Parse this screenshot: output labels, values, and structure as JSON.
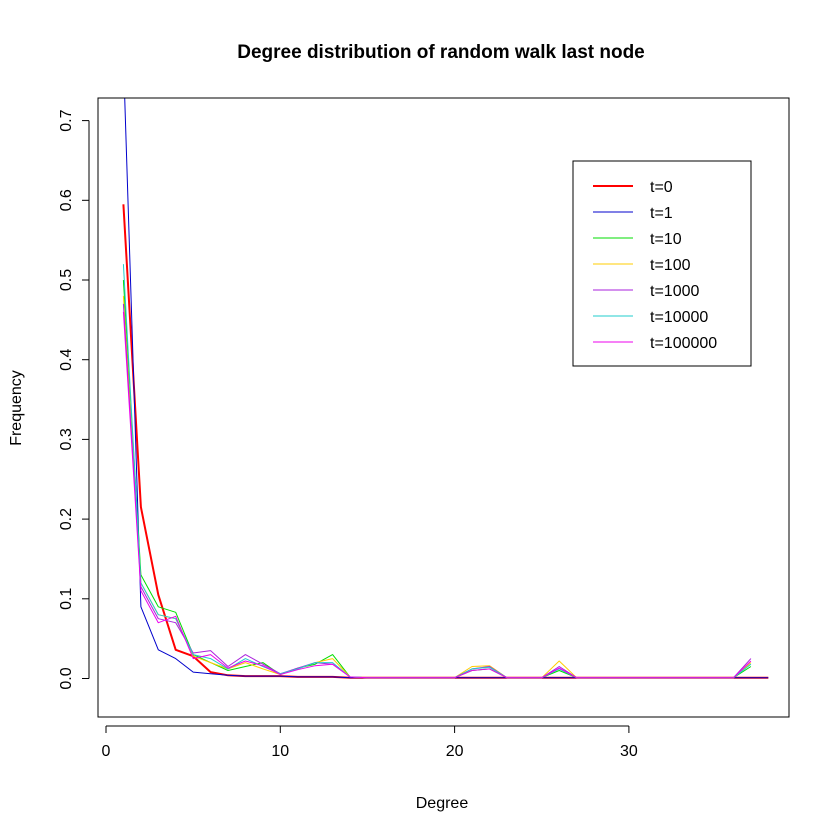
{
  "chart_data": {
    "type": "line",
    "title": "Degree distribution of random walk last node",
    "xlabel": "Degree",
    "ylabel": "Frequency",
    "xlim": [
      0,
      39
    ],
    "ylim": [
      -0.05,
      0.72
    ],
    "x_ticks": [
      0,
      10,
      20,
      30
    ],
    "y_ticks": [
      0.0,
      0.1,
      0.2,
      0.3,
      0.4,
      0.5,
      0.6,
      0.7
    ],
    "x_tick_labels": [
      "0",
      "10",
      "20",
      "30"
    ],
    "y_tick_labels": [
      "0.0",
      "0.1",
      "0.2",
      "0.3",
      "0.4",
      "0.5",
      "0.6",
      "0.7"
    ],
    "legend_position": "top-right",
    "series": [
      {
        "name": "t=0",
        "color": "#ff0000",
        "width": 2,
        "points": [
          [
            1,
            0.595
          ],
          [
            2,
            0.215
          ],
          [
            3,
            0.105
          ],
          [
            4,
            0.036
          ],
          [
            5,
            0.028
          ],
          [
            6,
            0.008
          ],
          [
            7,
            0.004
          ],
          [
            8,
            0.003
          ],
          [
            9,
            0.003
          ],
          [
            10,
            0.003
          ],
          [
            11,
            0.002
          ],
          [
            12,
            0.002
          ],
          [
            13,
            0.002
          ],
          [
            14,
            0.001
          ],
          [
            15,
            0.001
          ],
          [
            20,
            0.001
          ],
          [
            30,
            0.001
          ],
          [
            38,
            0.001
          ]
        ]
      },
      {
        "name": "t=1",
        "color": "#0000cc",
        "width": 1,
        "points": [
          [
            1,
            0.78
          ],
          [
            2,
            0.09
          ],
          [
            3,
            0.036
          ],
          [
            4,
            0.025
          ],
          [
            5,
            0.008
          ],
          [
            6,
            0.006
          ],
          [
            7,
            0.004
          ],
          [
            8,
            0.003
          ],
          [
            9,
            0.003
          ],
          [
            10,
            0.003
          ],
          [
            11,
            0.002
          ],
          [
            12,
            0.002
          ],
          [
            13,
            0.002
          ],
          [
            14,
            0.001
          ],
          [
            15,
            0.001
          ],
          [
            20,
            0.001
          ],
          [
            30,
            0.001
          ],
          [
            38,
            0.001
          ]
        ]
      },
      {
        "name": "t=10",
        "color": "#00dd00",
        "width": 1,
        "points": [
          [
            1,
            0.5
          ],
          [
            2,
            0.13
          ],
          [
            3,
            0.09
          ],
          [
            4,
            0.083
          ],
          [
            5,
            0.03
          ],
          [
            6,
            0.02
          ],
          [
            7,
            0.01
          ],
          [
            8,
            0.015
          ],
          [
            9,
            0.02
          ],
          [
            10,
            0.005
          ],
          [
            11,
            0.013
          ],
          [
            12,
            0.018
          ],
          [
            13,
            0.03
          ],
          [
            14,
            0.002
          ],
          [
            15,
            0.001
          ],
          [
            20,
            0.001
          ],
          [
            21,
            0.01
          ],
          [
            22,
            0.012
          ],
          [
            23,
            0.001
          ],
          [
            25,
            0.001
          ],
          [
            26,
            0.01
          ],
          [
            27,
            0.001
          ],
          [
            36,
            0.001
          ],
          [
            37,
            0.015
          ]
        ]
      },
      {
        "name": "t=100",
        "color": "#ffcc00",
        "width": 1,
        "points": [
          [
            1,
            0.48
          ],
          [
            2,
            0.12
          ],
          [
            3,
            0.08
          ],
          [
            4,
            0.075
          ],
          [
            5,
            0.028
          ],
          [
            6,
            0.02
          ],
          [
            7,
            0.012
          ],
          [
            8,
            0.02
          ],
          [
            9,
            0.012
          ],
          [
            10,
            0.005
          ],
          [
            11,
            0.012
          ],
          [
            12,
            0.02
          ],
          [
            13,
            0.025
          ],
          [
            14,
            0.002
          ],
          [
            15,
            0.001
          ],
          [
            20,
            0.001
          ],
          [
            21,
            0.015
          ],
          [
            22,
            0.016
          ],
          [
            23,
            0.001
          ],
          [
            25,
            0.001
          ],
          [
            26,
            0.022
          ],
          [
            27,
            0.001
          ],
          [
            36,
            0.001
          ],
          [
            37,
            0.02
          ]
        ]
      },
      {
        "name": "t=1000",
        "color": "#aa22dd",
        "width": 1,
        "points": [
          [
            1,
            0.47
          ],
          [
            2,
            0.115
          ],
          [
            3,
            0.075
          ],
          [
            4,
            0.07
          ],
          [
            5,
            0.032
          ],
          [
            6,
            0.035
          ],
          [
            7,
            0.015
          ],
          [
            8,
            0.03
          ],
          [
            9,
            0.018
          ],
          [
            10,
            0.006
          ],
          [
            11,
            0.013
          ],
          [
            12,
            0.02
          ],
          [
            13,
            0.018
          ],
          [
            14,
            0.002
          ],
          [
            15,
            0.001
          ],
          [
            20,
            0.001
          ],
          [
            21,
            0.012
          ],
          [
            22,
            0.015
          ],
          [
            23,
            0.001
          ],
          [
            25,
            0.001
          ],
          [
            26,
            0.015
          ],
          [
            27,
            0.001
          ],
          [
            36,
            0.001
          ],
          [
            37,
            0.025
          ]
        ]
      },
      {
        "name": "t=10000",
        "color": "#22cccc",
        "width": 1,
        "points": [
          [
            1,
            0.52
          ],
          [
            2,
            0.12
          ],
          [
            3,
            0.08
          ],
          [
            4,
            0.075
          ],
          [
            5,
            0.03
          ],
          [
            6,
            0.025
          ],
          [
            7,
            0.012
          ],
          [
            8,
            0.025
          ],
          [
            9,
            0.015
          ],
          [
            10,
            0.006
          ],
          [
            11,
            0.012
          ],
          [
            12,
            0.02
          ],
          [
            13,
            0.02
          ],
          [
            14,
            0.002
          ],
          [
            15,
            0.001
          ],
          [
            20,
            0.001
          ],
          [
            21,
            0.012
          ],
          [
            22,
            0.014
          ],
          [
            23,
            0.001
          ],
          [
            25,
            0.001
          ],
          [
            26,
            0.012
          ],
          [
            27,
            0.001
          ],
          [
            36,
            0.001
          ],
          [
            37,
            0.018
          ]
        ]
      },
      {
        "name": "t=100000",
        "color": "#ee00ee",
        "width": 1,
        "points": [
          [
            1,
            0.46
          ],
          [
            2,
            0.11
          ],
          [
            3,
            0.07
          ],
          [
            4,
            0.078
          ],
          [
            5,
            0.025
          ],
          [
            6,
            0.03
          ],
          [
            7,
            0.013
          ],
          [
            8,
            0.022
          ],
          [
            9,
            0.016
          ],
          [
            10,
            0.005
          ],
          [
            11,
            0.011
          ],
          [
            12,
            0.016
          ],
          [
            13,
            0.018
          ],
          [
            14,
            0.002
          ],
          [
            15,
            0.001
          ],
          [
            20,
            0.001
          ],
          [
            21,
            0.01
          ],
          [
            22,
            0.012
          ],
          [
            23,
            0.001
          ],
          [
            25,
            0.001
          ],
          [
            26,
            0.013
          ],
          [
            27,
            0.001
          ],
          [
            36,
            0.001
          ],
          [
            37,
            0.022
          ]
        ]
      }
    ]
  }
}
